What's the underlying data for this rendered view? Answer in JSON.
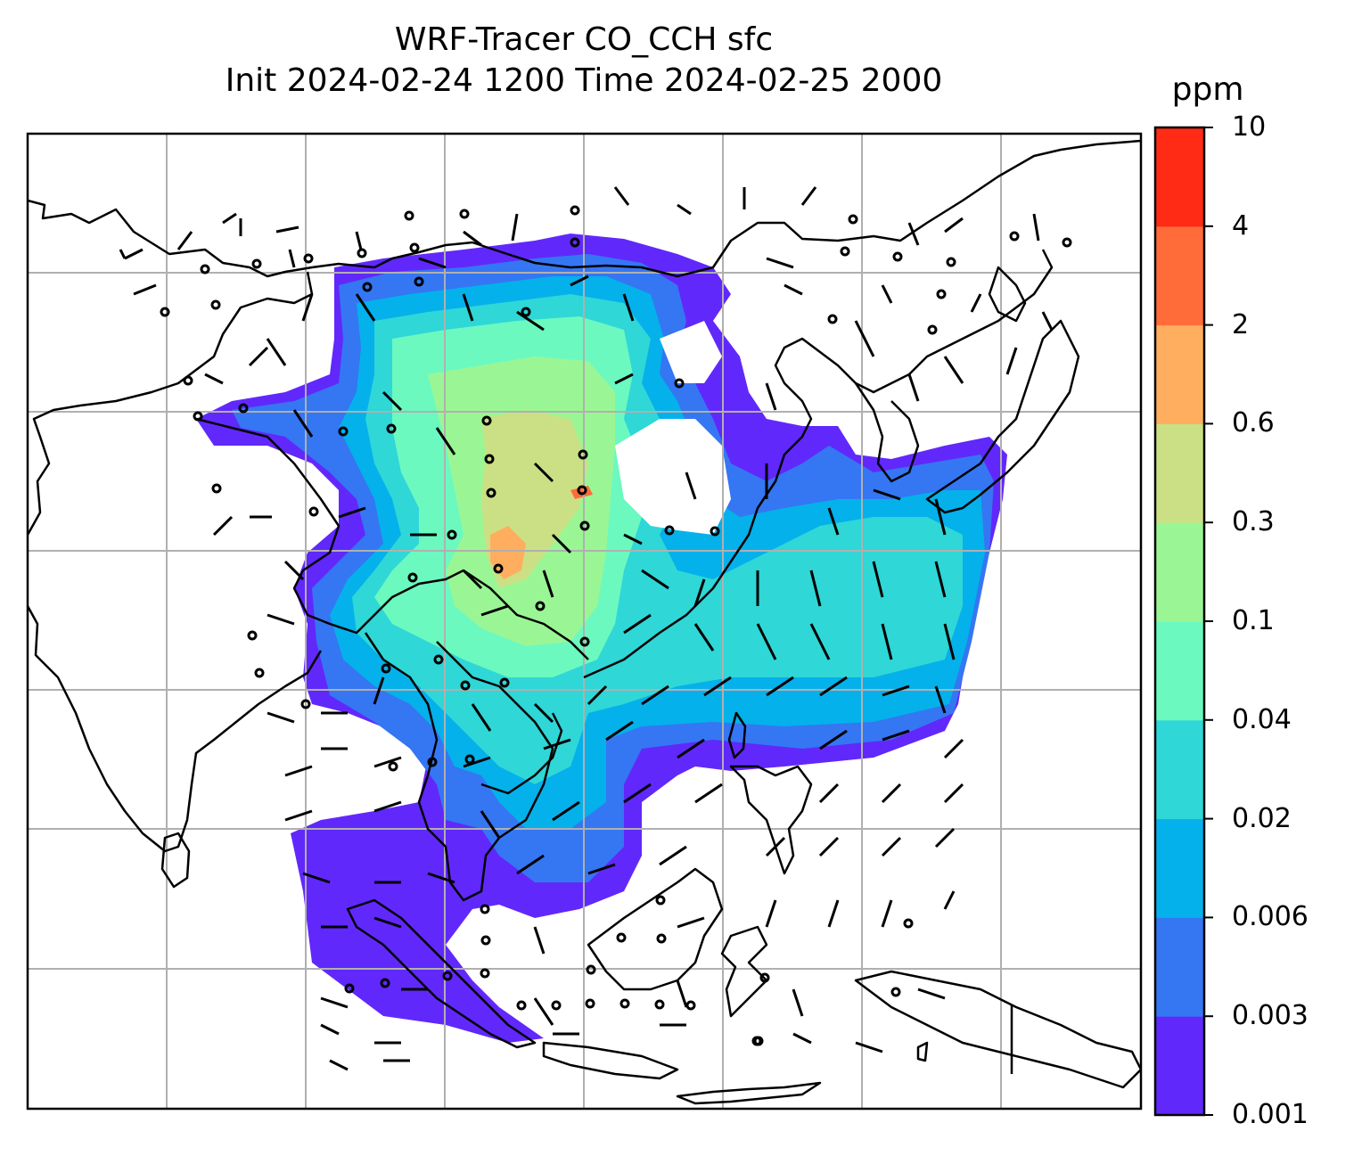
{
  "title": {
    "line1": "WRF-Tracer CO_CCH sfc",
    "line2": "Init 2024-02-24 1200 Time 2024-02-25 2000"
  },
  "colorbar": {
    "unit": "ppm",
    "levels": [
      "0.001",
      "0.003",
      "0.006",
      "0.02",
      "0.04",
      "0.1",
      "0.3",
      "0.6",
      "2",
      "4",
      "10"
    ],
    "colors": [
      "#6128fb",
      "#3576f3",
      "#04b1eb",
      "#2fd7d7",
      "#6bf9c0",
      "#9af694",
      "#cbe084",
      "#feae5e",
      "#ff6c3a",
      "#ff2b14"
    ]
  },
  "map": {
    "product": "CO_CCH surface tracer concentration with wind barbs",
    "coastline_color": "#000000",
    "gridline_color": "#b0b0b0"
  }
}
